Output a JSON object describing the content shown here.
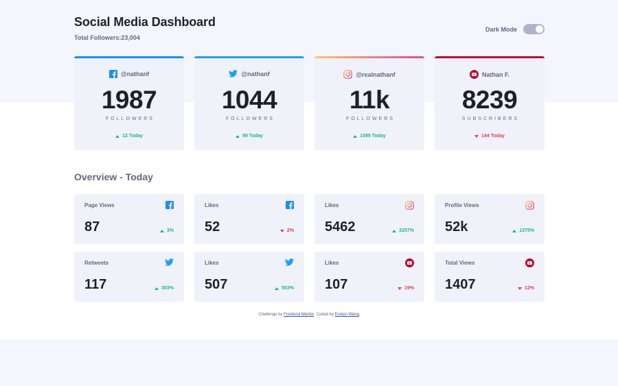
{
  "header": {
    "title": "Social Media Dashboard",
    "total_label": "Total Followers:",
    "total_value": "23,004",
    "dark_mode_label": "Dark Mode",
    "dark_mode_on": true
  },
  "colors": {
    "up": "#1db489",
    "down": "#dc414c",
    "facebook": "#198ff5",
    "twitter": "#1ca0f2",
    "youtube": "#c4032a",
    "instagram_gradient": [
      "#fdc468",
      "#df4996"
    ]
  },
  "cards": [
    {
      "platform": "facebook",
      "icon": "facebook-icon",
      "handle": "@nathanf",
      "count": "1987",
      "unit": "FOLLOWERS",
      "change": "12 Today",
      "direction": "up"
    },
    {
      "platform": "twitter",
      "icon": "twitter-icon",
      "handle": "@nathanf",
      "count": "1044",
      "unit": "FOLLOWERS",
      "change": "99 Today",
      "direction": "up"
    },
    {
      "platform": "instagram",
      "icon": "instagram-icon",
      "handle": "@realnathanf",
      "count": "11k",
      "unit": "FOLLOWERS",
      "change": "1099 Today",
      "direction": "up"
    },
    {
      "platform": "youtube",
      "icon": "youtube-icon",
      "handle": "Nathan F.",
      "count": "8239",
      "unit": "SUBSCRIBERS",
      "change": "144 Today",
      "direction": "down"
    }
  ],
  "overview": {
    "title": "Overview - Today",
    "items": [
      {
        "label": "Page Views",
        "icon": "facebook-icon",
        "value": "87",
        "change": "3%",
        "direction": "up"
      },
      {
        "label": "Likes",
        "icon": "facebook-icon",
        "value": "52",
        "change": "2%",
        "direction": "down"
      },
      {
        "label": "Likes",
        "icon": "instagram-icon",
        "value": "5462",
        "change": "2257%",
        "direction": "up"
      },
      {
        "label": "Profile Views",
        "icon": "instagram-icon",
        "value": "52k",
        "change": "1375%",
        "direction": "up"
      },
      {
        "label": "Retweets",
        "icon": "twitter-icon",
        "value": "117",
        "change": "303%",
        "direction": "up"
      },
      {
        "label": "Likes",
        "icon": "twitter-icon",
        "value": "507",
        "change": "553%",
        "direction": "up"
      },
      {
        "label": "Likes",
        "icon": "youtube-icon",
        "value": "107",
        "change": "19%",
        "direction": "down"
      },
      {
        "label": "Total Views",
        "icon": "youtube-icon",
        "value": "1407",
        "change": "12%",
        "direction": "down"
      }
    ]
  },
  "footer": {
    "prefix": "Challenge by ",
    "link1": "Frontend Mentor",
    "middle": ". Coded by ",
    "link2": "Evelyn Wang",
    "suffix": "."
  }
}
